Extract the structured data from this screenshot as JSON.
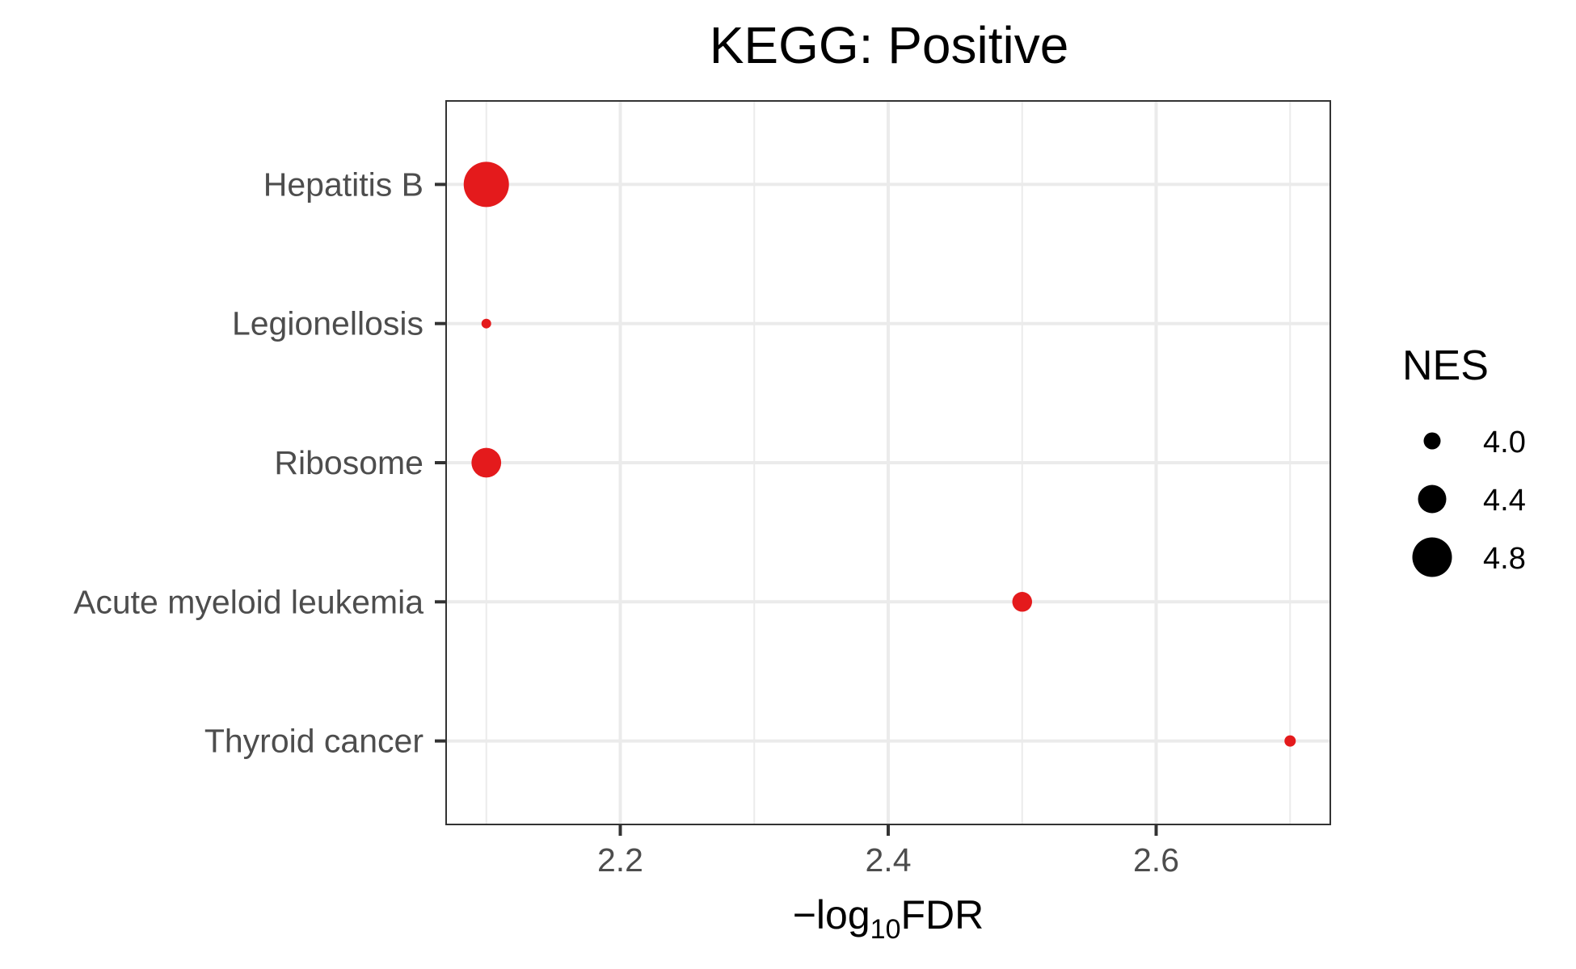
{
  "chart_data": {
    "type": "scatter",
    "title": "KEGG: Positive",
    "xlabel": {
      "prefix": "−log",
      "sub": "10",
      "suffix": "FDR"
    },
    "ylabel": "",
    "xlim": [
      2.07,
      2.73
    ],
    "x_ticks": [
      2.2,
      2.4,
      2.6
    ],
    "x_tick_labels": [
      "2.2",
      "2.4",
      "2.6"
    ],
    "grid": true,
    "categories": [
      "Hepatitis B",
      "Legionellosis",
      "Ribosome",
      "Acute myeloid leukemia",
      "Thyroid cancer"
    ],
    "points": [
      {
        "category": "Hepatitis B",
        "x": 2.1,
        "nes": 5.0
      },
      {
        "category": "Legionellosis",
        "x": 2.1,
        "nes": 3.65
      },
      {
        "category": "Ribosome",
        "x": 2.1,
        "nes": 4.45
      },
      {
        "category": "Acute myeloid leukemia",
        "x": 2.5,
        "nes": 4.1
      },
      {
        "category": "Thyroid cancer",
        "x": 2.7,
        "nes": 3.8
      }
    ],
    "point_color": "#e41a1c",
    "legend": {
      "title": "NES",
      "position": "right",
      "items": [
        {
          "label": "4.0",
          "value": 4.0
        },
        {
          "label": "4.4",
          "value": 4.4
        },
        {
          "label": "4.8",
          "value": 4.8
        }
      ]
    }
  }
}
